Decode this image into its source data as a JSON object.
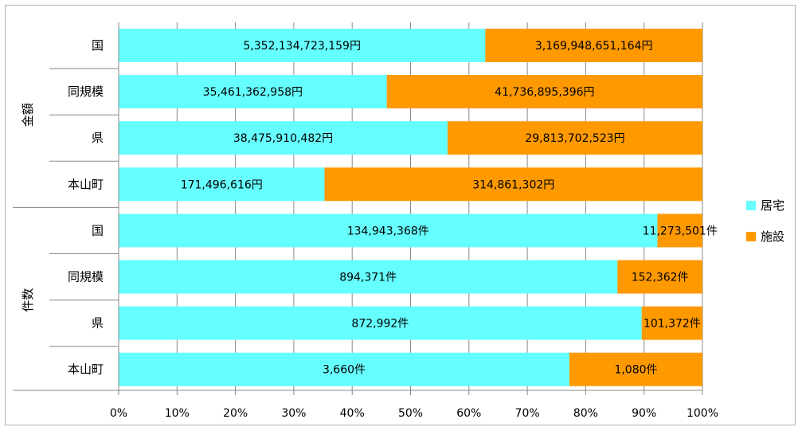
{
  "chart_data": {
    "type": "bar",
    "orientation": "horizontal",
    "stacked": "percent",
    "groups": [
      {
        "label": "金額",
        "categories": [
          "国",
          "同規模",
          "県",
          "本山町"
        ]
      },
      {
        "label": "件数",
        "categories": [
          "国",
          "同規模",
          "県",
          "本山町"
        ]
      }
    ],
    "series": [
      {
        "name": "居宅",
        "color": "#66ffff",
        "values": [
          5352134723159,
          35461362958,
          38475910482,
          171496616,
          134943368,
          894371,
          872992,
          3660
        ],
        "labels": [
          "5,352,134,723,159円",
          "35,461,362,958円",
          "38,475,910,482円",
          "171,496,616円",
          "134,943,368件",
          "894,371件",
          "872,992件",
          "3,660件"
        ]
      },
      {
        "name": "施設",
        "color": "#ff9900",
        "values": [
          3169948651164,
          41736895396,
          29813702523,
          314861302,
          11273501,
          152362,
          101372,
          1080
        ],
        "labels": [
          "3,169,948,651,164円",
          "41,736,895,396円",
          "29,813,702,523円",
          "314,861,302円",
          "11,273,501件",
          "152,362件",
          "101,372件",
          "1,080件"
        ]
      }
    ],
    "xticks": [
      "0%",
      "10%",
      "20%",
      "30%",
      "40%",
      "50%",
      "60%",
      "70%",
      "80%",
      "90%",
      "100%"
    ],
    "xlim": [
      0,
      100
    ],
    "grid": true,
    "legend_position": "right"
  }
}
